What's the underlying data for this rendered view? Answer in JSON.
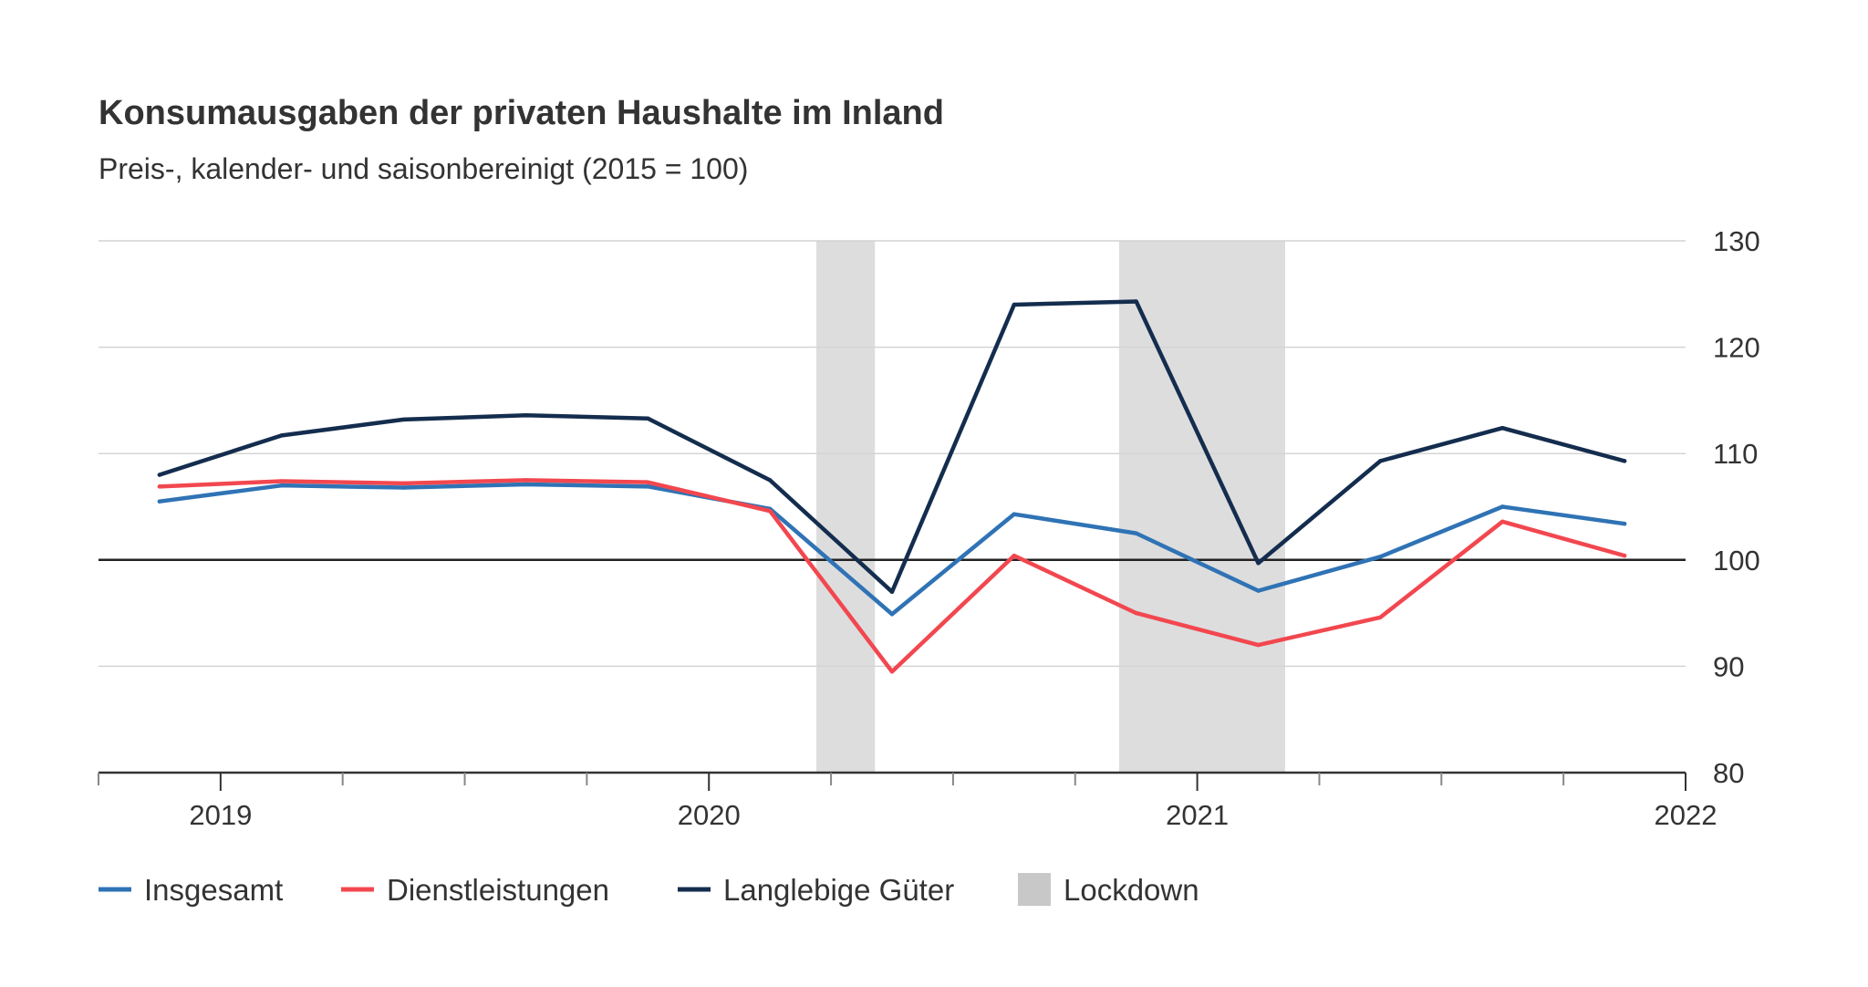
{
  "chart_data": {
    "type": "line",
    "title": "Konsumausgaben der privaten Haushalte im Inland",
    "subtitle": "Preis-, kalender- und saisonbereinigt (2015 = 100)",
    "xlabel": "",
    "ylabel": "",
    "x_labels": [
      "2019",
      "2020",
      "2021",
      "2022"
    ],
    "x_label_values": [
      2019,
      2020,
      2021,
      2022
    ],
    "xlim": [
      2018.75,
      2022.0
    ],
    "ylim": [
      80,
      130
    ],
    "y_ticks": [
      80,
      90,
      100,
      110,
      120,
      130
    ],
    "y_axis_position": "right",
    "baseline": 100,
    "grid": true,
    "legend_position": "bottom-left",
    "x": [
      2018.875,
      2019.125,
      2019.375,
      2019.625,
      2019.875,
      2020.125,
      2020.375,
      2020.625,
      2020.875,
      2021.125,
      2021.375,
      2021.625,
      2021.875
    ],
    "series": [
      {
        "name": "Insgesamt",
        "color": "#2f73b5",
        "values": [
          105.5,
          107.0,
          106.8,
          107.1,
          106.9,
          104.8,
          94.9,
          104.3,
          102.5,
          97.1,
          100.3,
          105.0,
          103.4
        ]
      },
      {
        "name": "Dienstleistungen",
        "color": "#f2474f",
        "values": [
          106.9,
          107.4,
          107.2,
          107.5,
          107.3,
          104.6,
          89.5,
          100.4,
          95.0,
          92.0,
          94.6,
          103.6,
          100.4
        ]
      },
      {
        "name": "Langlebige Güter",
        "color": "#142d4e",
        "values": [
          108.0,
          111.7,
          113.2,
          113.6,
          113.3,
          107.5,
          97.0,
          124.0,
          124.3,
          99.7,
          109.3,
          112.4,
          109.3
        ]
      }
    ],
    "shaded_regions": [
      {
        "name": "Lockdown",
        "color": "#dddddd",
        "x_start": 2020.22,
        "x_end": 2020.34
      },
      {
        "name": "Lockdown",
        "color": "#dddddd",
        "x_start": 2020.84,
        "x_end": 2021.18
      }
    ],
    "legend": [
      {
        "label": "Insgesamt",
        "color": "#2f73b5",
        "kind": "line"
      },
      {
        "label": "Dienstleistungen",
        "color": "#f2474f",
        "kind": "line"
      },
      {
        "label": "Langlebige Güter",
        "color": "#142d4e",
        "kind": "line"
      },
      {
        "label": "Lockdown",
        "color": "#c8c8c8",
        "kind": "box"
      }
    ]
  }
}
